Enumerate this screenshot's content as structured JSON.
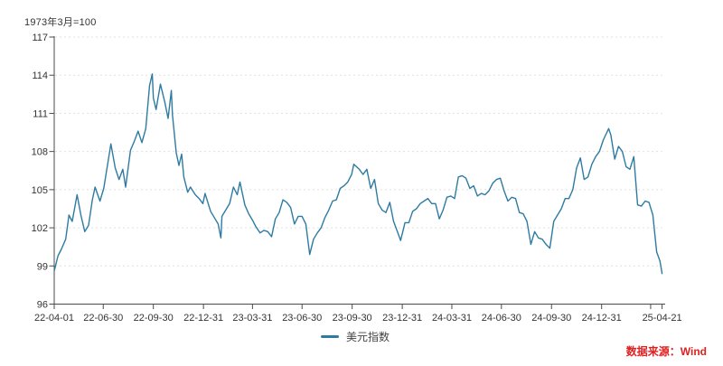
{
  "note": "1973年3月=100",
  "legend": {
    "label": "美元指数"
  },
  "source": {
    "label": "数据来源：Wind"
  },
  "colors": {
    "line": "#2e7ba2",
    "source_text": "#e02020",
    "axis": "#4a4a4a",
    "grid": "#e0e0e0",
    "label": "#333333",
    "background": "#ffffff"
  },
  "chart_data": {
    "type": "line",
    "title": "",
    "xlabel": "",
    "ylabel": "",
    "ylim": [
      96,
      117
    ],
    "y_ticks": [
      117,
      114,
      111,
      108,
      105,
      102,
      99,
      96
    ],
    "grid": "horizontal-dotted",
    "legend_position": "bottom-center",
    "x_domain": [
      "2022-04-01",
      "2025-04-21"
    ],
    "x_ticks": [
      {
        "label": "22-04-01",
        "date": "2022-04-01"
      },
      {
        "label": "22-06-30",
        "date": "2022-06-30"
      },
      {
        "label": "22-09-30",
        "date": "2022-09-30"
      },
      {
        "label": "22-12-31",
        "date": "2022-12-31"
      },
      {
        "label": "23-03-31",
        "date": "2023-03-31"
      },
      {
        "label": "23-06-30",
        "date": "2023-06-30"
      },
      {
        "label": "23-09-30",
        "date": "2023-09-30"
      },
      {
        "label": "23-12-31",
        "date": "2023-12-31"
      },
      {
        "label": "24-03-31",
        "date": "2024-03-31"
      },
      {
        "label": "24-06-30",
        "date": "2024-06-30"
      },
      {
        "label": "24-09-30",
        "date": "2024-09-30"
      },
      {
        "label": "24-12-31",
        "date": "2024-12-31"
      },
      {
        "label": "",
        "date": "2025-03-31"
      },
      {
        "label": "25-04-21",
        "date": "2025-04-21"
      }
    ],
    "series": [
      {
        "name": "美元指数",
        "points": [
          [
            "2022-04-01",
            98.6
          ],
          [
            "2022-04-08",
            99.8
          ],
          [
            "2022-04-14",
            100.3
          ],
          [
            "2022-04-22",
            101.1
          ],
          [
            "2022-04-28",
            103.0
          ],
          [
            "2022-05-04",
            102.5
          ],
          [
            "2022-05-13",
            104.6
          ],
          [
            "2022-05-20",
            103.0
          ],
          [
            "2022-05-27",
            101.7
          ],
          [
            "2022-06-03",
            102.2
          ],
          [
            "2022-06-10",
            104.2
          ],
          [
            "2022-06-15",
            105.2
          ],
          [
            "2022-06-24",
            104.1
          ],
          [
            "2022-07-01",
            105.1
          ],
          [
            "2022-07-08",
            107.0
          ],
          [
            "2022-07-14",
            108.6
          ],
          [
            "2022-07-22",
            106.7
          ],
          [
            "2022-07-29",
            105.8
          ],
          [
            "2022-08-05",
            106.6
          ],
          [
            "2022-08-10",
            105.2
          ],
          [
            "2022-08-19",
            108.1
          ],
          [
            "2022-08-26",
            108.8
          ],
          [
            "2022-09-02",
            109.6
          ],
          [
            "2022-09-09",
            108.7
          ],
          [
            "2022-09-16",
            109.8
          ],
          [
            "2022-09-23",
            113.2
          ],
          [
            "2022-09-28",
            114.1
          ],
          [
            "2022-09-30",
            112.2
          ],
          [
            "2022-10-05",
            111.3
          ],
          [
            "2022-10-13",
            113.3
          ],
          [
            "2022-10-21",
            111.9
          ],
          [
            "2022-10-27",
            110.6
          ],
          [
            "2022-11-02",
            112.8
          ],
          [
            "2022-11-04",
            110.9
          ],
          [
            "2022-11-11",
            107.9
          ],
          [
            "2022-11-16",
            106.9
          ],
          [
            "2022-11-21",
            107.8
          ],
          [
            "2022-11-25",
            106.0
          ],
          [
            "2022-12-02",
            104.8
          ],
          [
            "2022-12-07",
            105.2
          ],
          [
            "2022-12-16",
            104.6
          ],
          [
            "2022-12-23",
            104.3
          ],
          [
            "2022-12-30",
            103.9
          ],
          [
            "2023-01-03",
            104.7
          ],
          [
            "2023-01-13",
            103.3
          ],
          [
            "2023-01-20",
            102.8
          ],
          [
            "2023-01-27",
            102.3
          ],
          [
            "2023-02-01",
            101.2
          ],
          [
            "2023-02-03",
            102.9
          ],
          [
            "2023-02-10",
            103.4
          ],
          [
            "2023-02-17",
            103.9
          ],
          [
            "2023-02-24",
            105.2
          ],
          [
            "2023-03-03",
            104.6
          ],
          [
            "2023-03-08",
            105.6
          ],
          [
            "2023-03-17",
            103.8
          ],
          [
            "2023-03-24",
            103.1
          ],
          [
            "2023-03-31",
            102.6
          ],
          [
            "2023-04-06",
            102.1
          ],
          [
            "2023-04-14",
            101.6
          ],
          [
            "2023-04-21",
            101.8
          ],
          [
            "2023-04-28",
            101.7
          ],
          [
            "2023-05-05",
            101.3
          ],
          [
            "2023-05-12",
            102.7
          ],
          [
            "2023-05-19",
            103.2
          ],
          [
            "2023-05-26",
            104.2
          ],
          [
            "2023-06-02",
            104.0
          ],
          [
            "2023-06-09",
            103.6
          ],
          [
            "2023-06-16",
            102.3
          ],
          [
            "2023-06-23",
            102.9
          ],
          [
            "2023-06-30",
            102.9
          ],
          [
            "2023-07-07",
            102.3
          ],
          [
            "2023-07-14",
            99.9
          ],
          [
            "2023-07-21",
            101.1
          ],
          [
            "2023-07-28",
            101.6
          ],
          [
            "2023-08-04",
            102.0
          ],
          [
            "2023-08-11",
            102.8
          ],
          [
            "2023-08-18",
            103.4
          ],
          [
            "2023-08-25",
            104.1
          ],
          [
            "2023-09-01",
            104.2
          ],
          [
            "2023-09-08",
            105.1
          ],
          [
            "2023-09-15",
            105.3
          ],
          [
            "2023-09-22",
            105.6
          ],
          [
            "2023-09-29",
            106.2
          ],
          [
            "2023-10-03",
            107.0
          ],
          [
            "2023-10-13",
            106.6
          ],
          [
            "2023-10-20",
            106.2
          ],
          [
            "2023-10-27",
            106.6
          ],
          [
            "2023-11-03",
            105.1
          ],
          [
            "2023-11-10",
            105.8
          ],
          [
            "2023-11-17",
            103.9
          ],
          [
            "2023-11-24",
            103.4
          ],
          [
            "2023-12-01",
            103.2
          ],
          [
            "2023-12-08",
            104.0
          ],
          [
            "2023-12-15",
            102.5
          ],
          [
            "2023-12-22",
            101.7
          ],
          [
            "2023-12-28",
            101.0
          ],
          [
            "2024-01-05",
            102.4
          ],
          [
            "2024-01-12",
            102.4
          ],
          [
            "2024-01-19",
            103.3
          ],
          [
            "2024-01-26",
            103.5
          ],
          [
            "2024-02-02",
            103.9
          ],
          [
            "2024-02-09",
            104.1
          ],
          [
            "2024-02-16",
            104.3
          ],
          [
            "2024-02-23",
            103.9
          ],
          [
            "2024-03-01",
            103.9
          ],
          [
            "2024-03-08",
            102.7
          ],
          [
            "2024-03-15",
            103.4
          ],
          [
            "2024-03-22",
            104.4
          ],
          [
            "2024-03-29",
            104.5
          ],
          [
            "2024-04-05",
            104.3
          ],
          [
            "2024-04-12",
            106.0
          ],
          [
            "2024-04-19",
            106.1
          ],
          [
            "2024-04-26",
            105.9
          ],
          [
            "2024-05-03",
            105.1
          ],
          [
            "2024-05-10",
            105.3
          ],
          [
            "2024-05-17",
            104.5
          ],
          [
            "2024-05-24",
            104.7
          ],
          [
            "2024-05-31",
            104.6
          ],
          [
            "2024-06-07",
            104.9
          ],
          [
            "2024-06-14",
            105.5
          ],
          [
            "2024-06-21",
            105.8
          ],
          [
            "2024-06-28",
            105.9
          ],
          [
            "2024-07-05",
            104.9
          ],
          [
            "2024-07-12",
            104.1
          ],
          [
            "2024-07-19",
            104.4
          ],
          [
            "2024-07-26",
            104.3
          ],
          [
            "2024-08-02",
            103.2
          ],
          [
            "2024-08-09",
            103.1
          ],
          [
            "2024-08-16",
            102.5
          ],
          [
            "2024-08-23",
            100.7
          ],
          [
            "2024-08-30",
            101.7
          ],
          [
            "2024-09-06",
            101.2
          ],
          [
            "2024-09-13",
            101.1
          ],
          [
            "2024-09-20",
            100.7
          ],
          [
            "2024-09-27",
            100.4
          ],
          [
            "2024-10-04",
            102.5
          ],
          [
            "2024-10-11",
            103.0
          ],
          [
            "2024-10-18",
            103.5
          ],
          [
            "2024-10-25",
            104.3
          ],
          [
            "2024-11-01",
            104.3
          ],
          [
            "2024-11-08",
            105.0
          ],
          [
            "2024-11-15",
            106.7
          ],
          [
            "2024-11-22",
            107.5
          ],
          [
            "2024-11-29",
            105.8
          ],
          [
            "2024-12-06",
            106.0
          ],
          [
            "2024-12-13",
            107.0
          ],
          [
            "2024-12-20",
            107.6
          ],
          [
            "2024-12-27",
            108.0
          ],
          [
            "2025-01-03",
            108.9
          ],
          [
            "2025-01-13",
            109.8
          ],
          [
            "2025-01-17",
            109.3
          ],
          [
            "2025-01-24",
            107.4
          ],
          [
            "2025-01-31",
            108.4
          ],
          [
            "2025-02-07",
            108.0
          ],
          [
            "2025-02-14",
            106.8
          ],
          [
            "2025-02-21",
            106.6
          ],
          [
            "2025-02-28",
            107.6
          ],
          [
            "2025-03-07",
            103.8
          ],
          [
            "2025-03-14",
            103.7
          ],
          [
            "2025-03-21",
            104.1
          ],
          [
            "2025-03-28",
            104.0
          ],
          [
            "2025-04-04",
            103.0
          ],
          [
            "2025-04-11",
            100.1
          ],
          [
            "2025-04-17",
            99.4
          ],
          [
            "2025-04-21",
            98.4
          ]
        ]
      }
    ]
  }
}
